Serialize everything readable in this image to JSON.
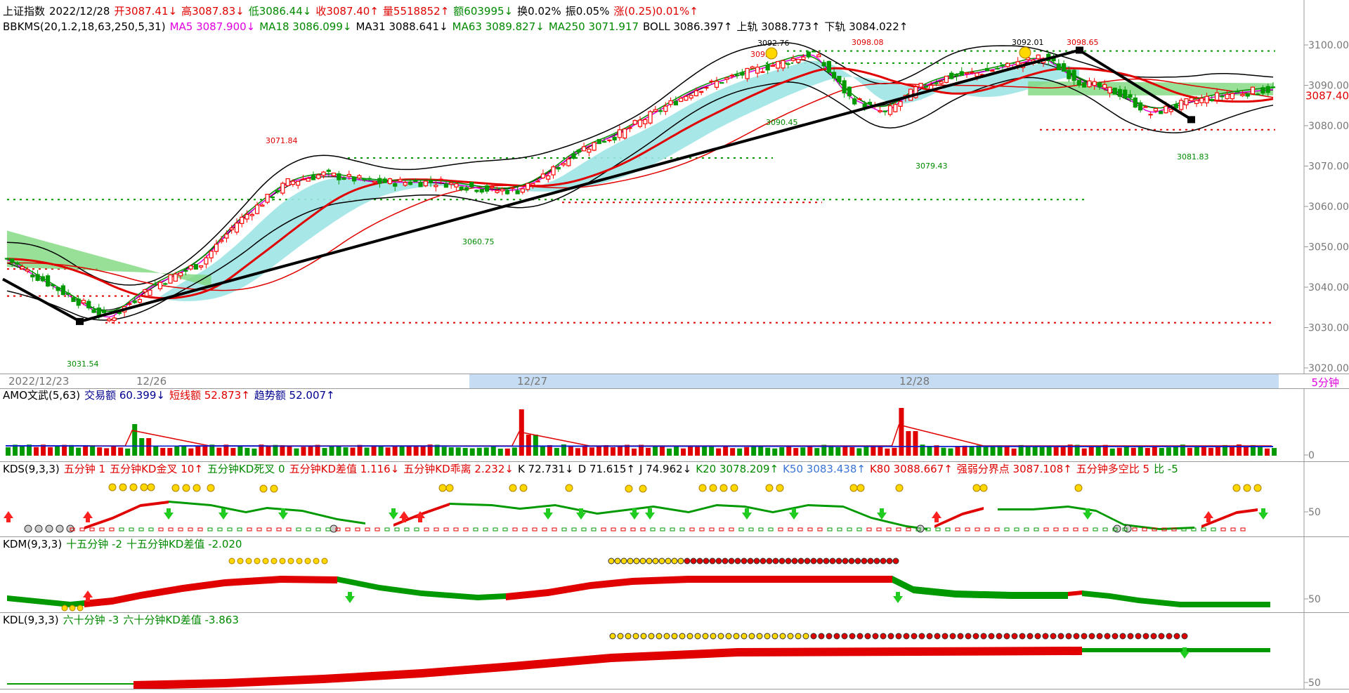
{
  "main": {
    "info_line": [
      {
        "text": "上证指数",
        "color": "black"
      },
      {
        "text": "2022/12/28",
        "color": "black"
      },
      {
        "text": "开3087.41↓",
        "color": "red"
      },
      {
        "text": "高3087.83↓",
        "color": "red"
      },
      {
        "text": "低3086.44↓",
        "color": "green"
      },
      {
        "text": "收3087.40↑",
        "color": "red"
      },
      {
        "text": "量5518852↑",
        "color": "red"
      },
      {
        "text": "额603995↓",
        "color": "green"
      },
      {
        "text": "换0.02%",
        "color": "black"
      },
      {
        "text": "振0.05%",
        "color": "black"
      },
      {
        "text": "涨(0.25)0.01%↑",
        "color": "red"
      }
    ],
    "indicator_line": [
      {
        "text": "BBKMS(20,1.2,18,63,250,5,31)",
        "color": "black"
      },
      {
        "text": "MA5 3087.900↓",
        "color": "mag"
      },
      {
        "text": "MA18 3086.099↓",
        "color": "green"
      },
      {
        "text": "MA31 3088.641↓",
        "color": "black"
      },
      {
        "text": "MA63 3089.827↓",
        "color": "green"
      },
      {
        "text": "MA250 3071.917",
        "color": "green"
      },
      {
        "text": "BOLL 3086.397↑",
        "color": "black"
      },
      {
        "text": "上轨 3088.773↑",
        "color": "black"
      },
      {
        "text": "下轨 3084.022↑",
        "color": "black"
      }
    ],
    "y_ticks": [
      "3100.00",
      "3090.00",
      "3080.00",
      "3070.00",
      "3060.00",
      "3050.00",
      "3040.00",
      "3030.00",
      "3020.00"
    ],
    "current_price": "3087.40",
    "annotations": [
      "3031.54",
      "3071.84",
      "3060.75",
      "3092.76",
      "3093",
      "3098.08",
      "3090.45",
      "3079.43",
      "3092.01",
      "3098.65",
      "3081.83"
    ],
    "colors": {
      "up": "#ff0000",
      "down": "#009900",
      "band": "#9fe4e4",
      "cloud": "#7ed87e",
      "ma5": "#e000e0"
    }
  },
  "time_axis": {
    "labels": [
      "2022/12/23",
      "12/26",
      "12/27",
      "12/28"
    ],
    "period": "5分钟"
  },
  "amo": {
    "line": [
      {
        "text": "AMO文武(5,63)",
        "color": "black"
      },
      {
        "text": "交易额 60.399↓",
        "color": "blue"
      },
      {
        "text": "短线额 52.873↑",
        "color": "red"
      },
      {
        "text": "趋势额 52.007↑",
        "color": "blue"
      }
    ],
    "y_tick": "0"
  },
  "kds": {
    "line": [
      {
        "text": "KDS(9,3,3)",
        "color": "black"
      },
      {
        "text": "五分钟 1",
        "color": "red"
      },
      {
        "text": "五分钟KD金叉 10↑",
        "color": "red"
      },
      {
        "text": "五分钟KD死叉 0",
        "color": "green"
      },
      {
        "text": "五分钟KD差值 1.116↓",
        "color": "red"
      },
      {
        "text": "五分钟KD乖离 2.232↓",
        "color": "red"
      },
      {
        "text": "K 72.731↓",
        "color": "black"
      },
      {
        "text": "D 71.615↑",
        "color": "black"
      },
      {
        "text": "J 74.962↓",
        "color": "black"
      },
      {
        "text": "K20 3078.209↑",
        "color": "green"
      },
      {
        "text": "K50 3083.438↑",
        "color": "lblue"
      },
      {
        "text": "K80 3088.667↑",
        "color": "red"
      },
      {
        "text": "强弱分界点 3087.108↑",
        "color": "red"
      },
      {
        "text": "五分钟多空比 5",
        "color": "red"
      },
      {
        "text": "比 -5",
        "color": "green"
      }
    ],
    "y_tick": "50"
  },
  "kdm": {
    "line": [
      {
        "text": "KDM(9,3,3)",
        "color": "black"
      },
      {
        "text": "十五分钟 -2",
        "color": "green"
      },
      {
        "text": "十五分钟KD差值 -2.020",
        "color": "green"
      }
    ],
    "y_tick": "50"
  },
  "kdl": {
    "line": [
      {
        "text": "KDL(9,3,3)",
        "color": "black"
      },
      {
        "text": "六十分钟 -3",
        "color": "green"
      },
      {
        "text": "六十分钟KD差值 -3.863",
        "color": "green"
      }
    ],
    "y_tick": "50"
  }
}
